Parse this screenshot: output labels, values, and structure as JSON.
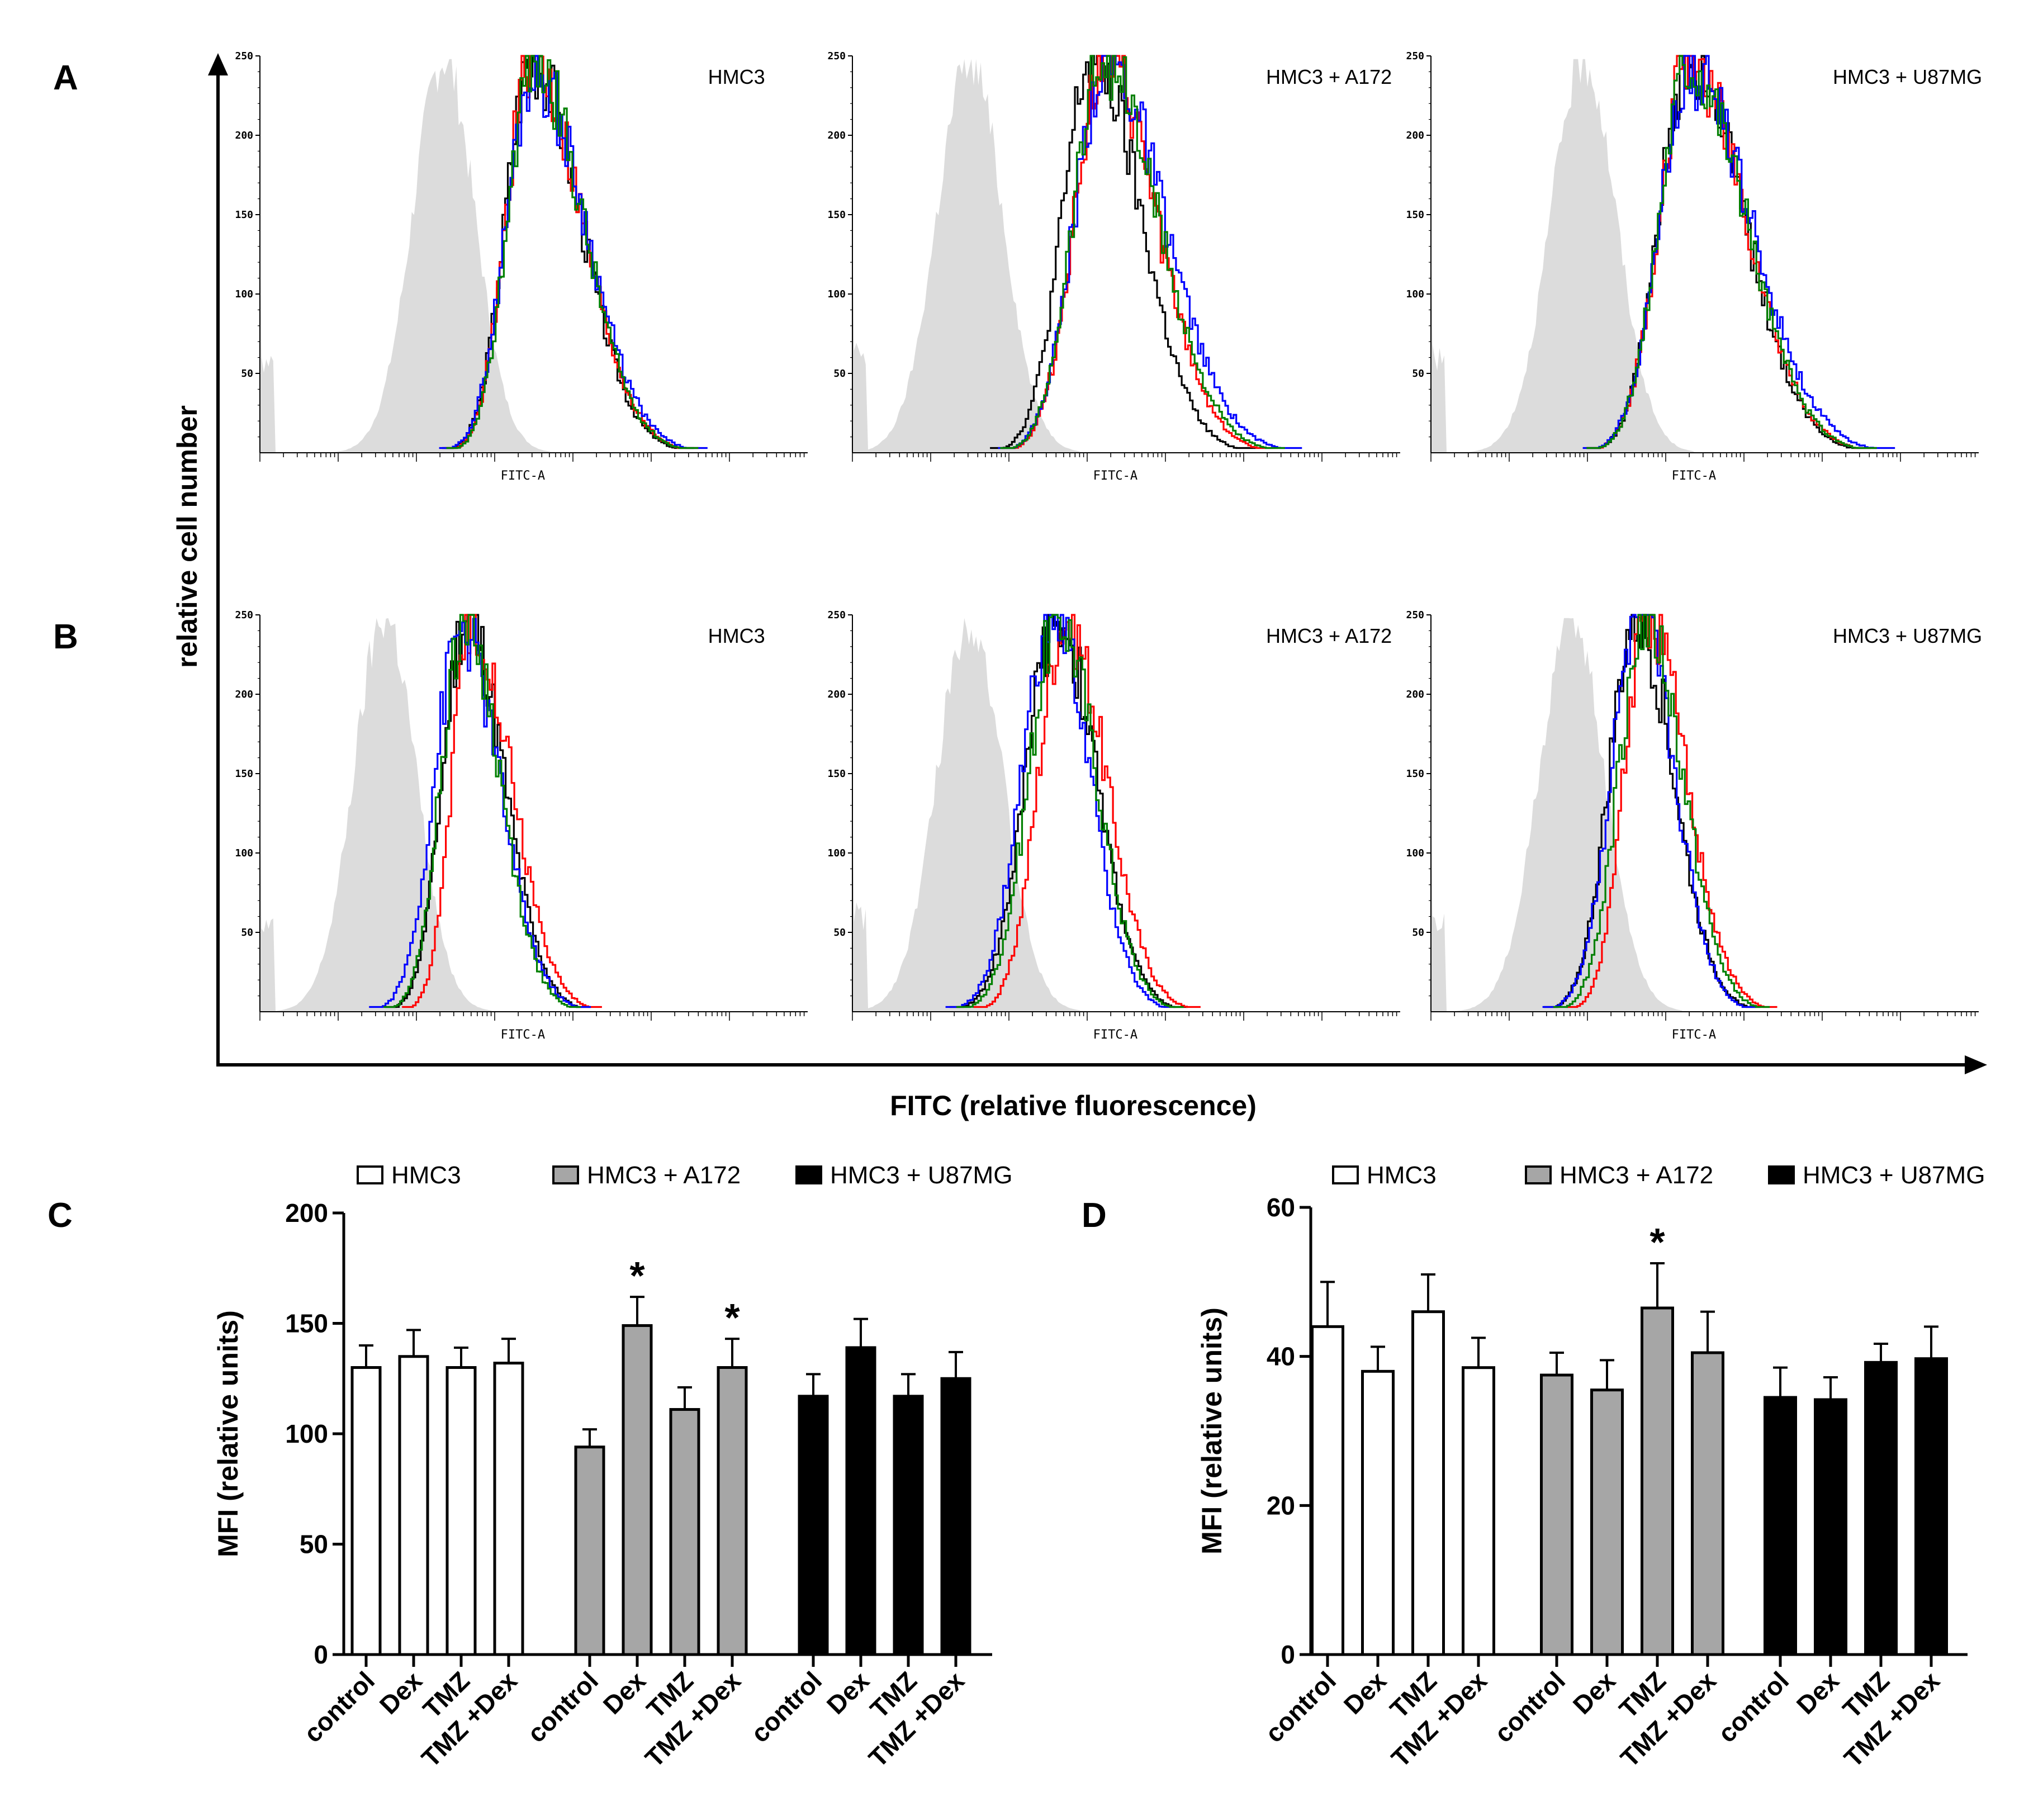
{
  "figure": {
    "labels": {
      "a": "A",
      "b": "B",
      "c": "C",
      "d": "D"
    },
    "y_axis_label": "relative cell number",
    "x_axis_label": "FITC (relative fluorescence)"
  },
  "colors": {
    "isotype_fill": "#dcdcdc",
    "control": "#000000",
    "dex": "#ff0000",
    "tmz": "#0000ff",
    "tmz_dex": "#008000",
    "bar_hmc3": "#ffffff",
    "bar_a172": "#a6a6a6",
    "bar_u87": "#000000"
  },
  "chart_data": [
    {
      "id": "A1",
      "type": "histogram",
      "row": "A",
      "title": "HMC3",
      "xlabel": "FITC-A",
      "yticks": [
        50,
        100,
        150,
        200,
        250
      ],
      "ylim": [
        0,
        250
      ],
      "xlim_log": [
        0,
        7
      ],
      "isotype": {
        "mode": 2.35,
        "width": 0.4,
        "peak": 248
      },
      "series": [
        {
          "name": "control",
          "color": "#000000",
          "mode": 3.45,
          "sl": 0.33,
          "sr": 0.62,
          "peak": 248
        },
        {
          "name": "Dex",
          "color": "#ff0000",
          "mode": 3.45,
          "sl": 0.32,
          "sr": 0.64,
          "peak": 248
        },
        {
          "name": "TMZ",
          "color": "#0000ff",
          "mode": 3.48,
          "sl": 0.35,
          "sr": 0.66,
          "peak": 240
        },
        {
          "name": "TMZ+Dex",
          "color": "#008000",
          "mode": 3.47,
          "sl": 0.32,
          "sr": 0.63,
          "peak": 248
        }
      ]
    },
    {
      "id": "A2",
      "type": "histogram",
      "row": "A",
      "title": "HMC3 + A172",
      "xlabel": "FITC-A",
      "yticks": [
        50,
        100,
        150,
        200,
        250
      ],
      "ylim": [
        0,
        250
      ],
      "xlim_log": [
        0,
        7
      ],
      "isotype": {
        "mode": 1.5,
        "width": 0.42,
        "peak": 248
      },
      "series": [
        {
          "name": "control",
          "color": "#000000",
          "mode": 3.05,
          "sl": 0.38,
          "sr": 0.62,
          "peak": 248
        },
        {
          "name": "Dex",
          "color": "#ff0000",
          "mode": 3.2,
          "sl": 0.38,
          "sr": 0.66,
          "peak": 248
        },
        {
          "name": "TMZ",
          "color": "#0000ff",
          "mode": 3.22,
          "sl": 0.4,
          "sr": 0.75,
          "peak": 245
        },
        {
          "name": "TMZ+Dex",
          "color": "#008000",
          "mode": 3.18,
          "sl": 0.38,
          "sr": 0.7,
          "peak": 248
        }
      ]
    },
    {
      "id": "A3",
      "type": "histogram",
      "row": "A",
      "title": "HMC3 + U87MG",
      "xlabel": "FITC-A",
      "yticks": [
        50,
        100,
        150,
        200,
        250
      ],
      "ylim": [
        0,
        250
      ],
      "xlim_log": [
        0,
        7
      ],
      "isotype": {
        "mode": 1.95,
        "width": 0.42,
        "peak": 248
      },
      "series": [
        {
          "name": "control",
          "color": "#000000",
          "mode": 3.28,
          "sl": 0.38,
          "sr": 0.7,
          "peak": 248
        },
        {
          "name": "Dex",
          "color": "#ff0000",
          "mode": 3.28,
          "sl": 0.38,
          "sr": 0.72,
          "peak": 248
        },
        {
          "name": "TMZ",
          "color": "#0000ff",
          "mode": 3.3,
          "sl": 0.4,
          "sr": 0.78,
          "peak": 240
        },
        {
          "name": "TMZ+Dex",
          "color": "#008000",
          "mode": 3.28,
          "sl": 0.38,
          "sr": 0.72,
          "peak": 248
        }
      ]
    },
    {
      "id": "B1",
      "type": "histogram",
      "row": "B",
      "title": "HMC3",
      "xlabel": "FITC-A",
      "yticks": [
        50,
        100,
        150,
        200,
        250
      ],
      "ylim": [
        0,
        250
      ],
      "xlim_log": [
        0,
        7
      ],
      "isotype": {
        "mode": 1.6,
        "width": 0.4,
        "peak": 248
      },
      "series": [
        {
          "name": "control",
          "color": "#000000",
          "mode": 2.62,
          "sl": 0.3,
          "sr": 0.48,
          "peak": 248
        },
        {
          "name": "Dex",
          "color": "#ff0000",
          "mode": 2.7,
          "sl": 0.26,
          "sr": 0.5,
          "peak": 248
        },
        {
          "name": "TMZ",
          "color": "#0000ff",
          "mode": 2.55,
          "sl": 0.34,
          "sr": 0.5,
          "peak": 240
        },
        {
          "name": "TMZ+Dex",
          "color": "#008000",
          "mode": 2.6,
          "sl": 0.3,
          "sr": 0.45,
          "peak": 248
        }
      ]
    },
    {
      "id": "B2",
      "type": "histogram",
      "row": "B",
      "title": "HMC3 + A172",
      "xlabel": "FITC-A",
      "yticks": [
        50,
        100,
        150,
        200,
        250
      ],
      "ylim": [
        0,
        250
      ],
      "xlim_log": [
        0,
        7
      ],
      "isotype": {
        "mode": 1.5,
        "width": 0.42,
        "peak": 248
      },
      "series": [
        {
          "name": "control",
          "color": "#000000",
          "mode": 2.6,
          "sl": 0.4,
          "sr": 0.5,
          "peak": 248
        },
        {
          "name": "Dex",
          "color": "#ff0000",
          "mode": 2.7,
          "sl": 0.34,
          "sr": 0.52,
          "peak": 248
        },
        {
          "name": "TMZ",
          "color": "#0000ff",
          "mode": 2.55,
          "sl": 0.4,
          "sr": 0.47,
          "peak": 248
        },
        {
          "name": "TMZ+Dex",
          "color": "#008000",
          "mode": 2.62,
          "sl": 0.38,
          "sr": 0.48,
          "peak": 248
        }
      ]
    },
    {
      "id": "B3",
      "type": "histogram",
      "row": "B",
      "title": "HMC3 + U87MG",
      "xlabel": "FITC-A",
      "yticks": [
        50,
        100,
        150,
        200,
        250
      ],
      "ylim": [
        0,
        250
      ],
      "xlim_log": [
        0,
        7
      ],
      "isotype": {
        "mode": 1.8,
        "width": 0.42,
        "peak": 248
      },
      "series": [
        {
          "name": "control",
          "color": "#000000",
          "mode": 2.6,
          "sl": 0.34,
          "sr": 0.48,
          "peak": 248
        },
        {
          "name": "Dex",
          "color": "#ff0000",
          "mode": 2.75,
          "sl": 0.3,
          "sr": 0.5,
          "peak": 248
        },
        {
          "name": "TMZ",
          "color": "#0000ff",
          "mode": 2.65,
          "sl": 0.36,
          "sr": 0.45,
          "peak": 248
        },
        {
          "name": "TMZ+Dex",
          "color": "#008000",
          "mode": 2.72,
          "sl": 0.34,
          "sr": 0.48,
          "peak": 248
        }
      ]
    },
    {
      "id": "C",
      "type": "bar",
      "ylabel": "MFI (relative units)",
      "ylim": [
        0,
        200
      ],
      "yticks": [
        0,
        50,
        100,
        150,
        200
      ],
      "legend": [
        "HMC3",
        "HMC3 + A172",
        "HMC3 + U87MG"
      ],
      "categories": [
        "control",
        "Dex",
        "TMZ",
        "TMZ +Dex"
      ],
      "series": [
        {
          "name": "HMC3",
          "values": [
            130,
            135,
            130,
            132
          ],
          "errors": [
            10,
            12,
            9,
            11
          ],
          "stars": [
            false,
            false,
            false,
            false
          ]
        },
        {
          "name": "HMC3 + A172",
          "values": [
            94,
            149,
            111,
            130
          ],
          "errors": [
            8,
            13,
            10,
            13
          ],
          "stars": [
            false,
            true,
            false,
            true
          ]
        },
        {
          "name": "HMC3 + U87MG",
          "values": [
            117,
            139,
            117,
            125
          ],
          "errors": [
            10,
            13,
            10,
            12
          ],
          "stars": [
            false,
            false,
            false,
            false
          ]
        }
      ],
      "star_label": "*"
    },
    {
      "id": "D",
      "type": "bar",
      "ylabel": "MFI (relative units)",
      "ylim": [
        0,
        60
      ],
      "yticks": [
        0,
        20,
        40,
        60
      ],
      "legend": [
        "HMC3",
        "HMC3 + A172",
        "HMC3 + U87MG"
      ],
      "categories": [
        "control",
        "Dex",
        "TMZ",
        "TMZ +Dex"
      ],
      "series": [
        {
          "name": "HMC3",
          "values": [
            44,
            38,
            46,
            38.5
          ],
          "errors": [
            6,
            3.3,
            5,
            4
          ],
          "stars": [
            false,
            false,
            false,
            false
          ]
        },
        {
          "name": "HMC3 + A172",
          "values": [
            37.5,
            35.5,
            46.5,
            40.5
          ],
          "errors": [
            3,
            4,
            6,
            5.5
          ],
          "stars": [
            false,
            false,
            true,
            false
          ]
        },
        {
          "name": "HMC3 + U87MG",
          "values": [
            34.5,
            34.2,
            39.2,
            39.7
          ],
          "errors": [
            4,
            3,
            2.5,
            4.3
          ],
          "stars": [
            false,
            false,
            false,
            false
          ]
        }
      ],
      "star_label": "*"
    }
  ]
}
